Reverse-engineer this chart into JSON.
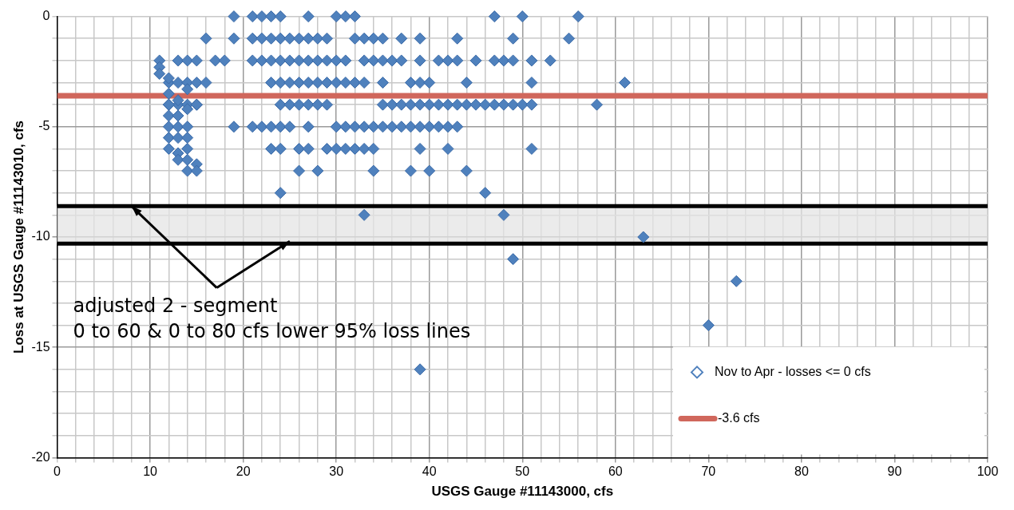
{
  "chart_data": {
    "type": "scatter",
    "xlabel": "USGS Gauge #11143000, cfs",
    "ylabel": "Loss at USGS Gauge #11143010, cfs",
    "series": [
      {
        "name": "Nov to Apr - losses <= 0 cfs",
        "color": "#4f81bd",
        "marker": "diamond",
        "x": [
          19,
          21,
          22,
          23,
          24,
          27,
          30,
          31,
          32,
          47,
          50,
          56,
          16,
          19,
          21,
          22,
          23,
          24,
          25,
          26,
          27,
          28,
          29,
          32,
          33,
          34,
          35,
          37,
          39,
          43,
          49,
          55,
          11,
          13,
          14,
          15,
          17,
          18,
          21,
          22,
          23,
          24,
          25,
          26,
          27,
          28,
          29,
          30,
          31,
          33,
          34,
          35,
          36,
          37,
          39,
          41,
          42,
          43,
          45,
          47,
          48,
          49,
          51,
          53,
          12,
          13,
          14,
          15,
          16,
          23,
          24,
          25,
          26,
          27,
          28,
          29,
          30,
          31,
          32,
          33,
          35,
          38,
          39,
          40,
          44,
          51,
          61,
          12,
          13,
          14,
          15,
          24,
          25,
          26,
          27,
          28,
          29,
          35,
          36,
          37,
          38,
          39,
          40,
          41,
          42,
          43,
          44,
          45,
          46,
          47,
          48,
          49,
          50,
          51,
          58,
          19,
          21,
          22,
          23,
          24,
          25,
          27,
          30,
          31,
          32,
          33,
          34,
          35,
          36,
          37,
          38,
          39,
          40,
          41,
          42,
          43,
          23,
          24,
          26,
          27,
          29,
          30,
          31,
          32,
          33,
          34,
          39,
          42,
          51,
          26,
          28,
          34,
          38,
          40,
          44,
          24,
          46,
          33,
          48,
          63,
          49,
          73,
          70,
          39,
          11,
          11,
          12,
          12,
          12,
          12,
          12,
          12,
          12,
          13,
          13,
          13,
          13,
          13,
          13,
          14,
          14,
          14,
          14,
          14,
          14,
          15,
          15,
          15,
          14
        ],
        "values": [
          0,
          0,
          0,
          0,
          0,
          0,
          0,
          0,
          0,
          0,
          0,
          0,
          -1,
          -1,
          -1,
          -1,
          -1,
          -1,
          -1,
          -1,
          -1,
          -1,
          -1,
          -1,
          -1,
          -1,
          -1,
          -1,
          -1,
          -1,
          -1,
          -1,
          -2,
          -2,
          -2,
          -2,
          -2,
          -2,
          -2,
          -2,
          -2,
          -2,
          -2,
          -2,
          -2,
          -2,
          -2,
          -2,
          -2,
          -2,
          -2,
          -2,
          -2,
          -2,
          -2,
          -2,
          -2,
          -2,
          -2,
          -2,
          -2,
          -2,
          -2,
          -2,
          -3,
          -3,
          -3,
          -3,
          -3,
          -3,
          -3,
          -3,
          -3,
          -3,
          -3,
          -3,
          -3,
          -3,
          -3,
          -3,
          -3,
          -3,
          -3,
          -3,
          -3,
          -3,
          -3,
          -4,
          -4,
          -4,
          -4,
          -4,
          -4,
          -4,
          -4,
          -4,
          -4,
          -4,
          -4,
          -4,
          -4,
          -4,
          -4,
          -4,
          -4,
          -4,
          -4,
          -4,
          -4,
          -4,
          -4,
          -4,
          -4,
          -4,
          -4,
          -5,
          -5,
          -5,
          -5,
          -5,
          -5,
          -5,
          -5,
          -5,
          -5,
          -5,
          -5,
          -5,
          -5,
          -5,
          -5,
          -5,
          -5,
          -5,
          -5,
          -5,
          -6,
          -6,
          -6,
          -6,
          -6,
          -6,
          -6,
          -6,
          -6,
          -6,
          -6,
          -6,
          -6,
          -7,
          -7,
          -7,
          -7,
          -7,
          -7,
          -8,
          -8,
          -9,
          -9,
          -10,
          -11,
          -12,
          -14,
          -16,
          -2.3,
          -2.6,
          -2.8,
          -3.5,
          -4,
          -4.5,
          -5,
          -5.5,
          -6,
          -3.8,
          -4.5,
          -5,
          -5.5,
          -6.2,
          -6.5,
          -4.2,
          -5,
          -5.5,
          -6,
          -6.5,
          -7,
          -6.7,
          -7,
          -4,
          -3.3
        ]
      },
      {
        "name": "-3.6 cfs",
        "type": "line",
        "color": "#d0675c",
        "marker": "none",
        "x": [
          0,
          100
        ],
        "values": [
          -3.6,
          -3.6
        ]
      }
    ],
    "ref_lines": [
      {
        "axis": "y",
        "value": -8.6,
        "color": "#000000"
      },
      {
        "axis": "y",
        "value": -10.3,
        "color": "#000000"
      }
    ],
    "bands": [
      {
        "axis": "y",
        "from": -10.3,
        "to": -8.6,
        "color": "#e4e4e4"
      }
    ],
    "annotations": [
      {
        "text": "adjusted 2 - segment",
        "x": 8,
        "y": -8.6
      },
      "0 to 60 & 0 to 80 cfs lower 95% loss lines"
    ],
    "xlim": [
      0,
      100
    ],
    "ylim": [
      -20,
      0
    ],
    "xticks": [
      0,
      {
        "value": 2,
        "label": null
      },
      {
        "value": 4,
        "label": null
      },
      {
        "value": 6,
        "label": null
      },
      {
        "value": 8,
        "label": null
      },
      10,
      {
        "value": 12,
        "label": null
      },
      {
        "value": 14,
        "label": null
      },
      {
        "value": 16,
        "label": null
      },
      {
        "value": 18,
        "label": null
      },
      20,
      {
        "value": 22,
        "label": null
      },
      {
        "value": 24,
        "label": null
      },
      {
        "value": 26,
        "label": null
      },
      {
        "value": 28,
        "label": null
      },
      30,
      {
        "value": 32,
        "label": null
      },
      {
        "value": 34,
        "label": null
      },
      {
        "value": 36,
        "label": null
      },
      {
        "value": 38,
        "label": null
      },
      40,
      {
        "value": 42,
        "label": null
      },
      {
        "value": 44,
        "label": null
      },
      {
        "value": 46,
        "label": null
      },
      {
        "value": 48,
        "label": null
      },
      50,
      {
        "value": 52,
        "label": null
      },
      {
        "value": 54,
        "label": null
      },
      {
        "value": 56,
        "label": null
      },
      {
        "value": 58,
        "label": null
      },
      60,
      {
        "value": 62,
        "label": null
      },
      {
        "value": 64,
        "label": null
      },
      {
        "value": 66,
        "label": null
      },
      {
        "value": 68,
        "label": null
      },
      70,
      {
        "value": 72,
        "label": null
      },
      {
        "value": 74,
        "label": null
      },
      {
        "value": 76,
        "label": null
      },
      {
        "value": 78,
        "label": null
      },
      80,
      {
        "value": 82,
        "label": null
      },
      {
        "value": 84,
        "label": null
      },
      {
        "value": 86,
        "label": null
      },
      {
        "value": 88,
        "label": null
      },
      90,
      {
        "value": 92,
        "label": null
      },
      {
        "value": 94,
        "label": null
      },
      {
        "value": 96,
        "label": null
      },
      {
        "value": 98,
        "label": null
      },
      100
    ],
    "yticks": [
      -20,
      {
        "value": -19,
        "label": null
      },
      {
        "value": -18,
        "label": null
      },
      {
        "value": -17,
        "label": null
      },
      {
        "value": -16,
        "label": null
      },
      -15,
      {
        "value": -14,
        "label": null
      },
      {
        "value": -13,
        "label": null
      },
      {
        "value": -12,
        "label": null
      },
      {
        "value": -11,
        "label": null
      },
      -10,
      {
        "value": -9,
        "label": null
      },
      {
        "value": -8,
        "label": null
      },
      {
        "value": -7,
        "label": null
      },
      {
        "value": -6,
        "label": null
      },
      -5,
      {
        "value": -4,
        "label": null
      },
      {
        "value": -3,
        "label": null
      },
      {
        "value": -2,
        "label": null
      },
      {
        "value": -1,
        "label": null
      },
      0
    ],
    "grid": true,
    "legend": "bottom right"
  }
}
